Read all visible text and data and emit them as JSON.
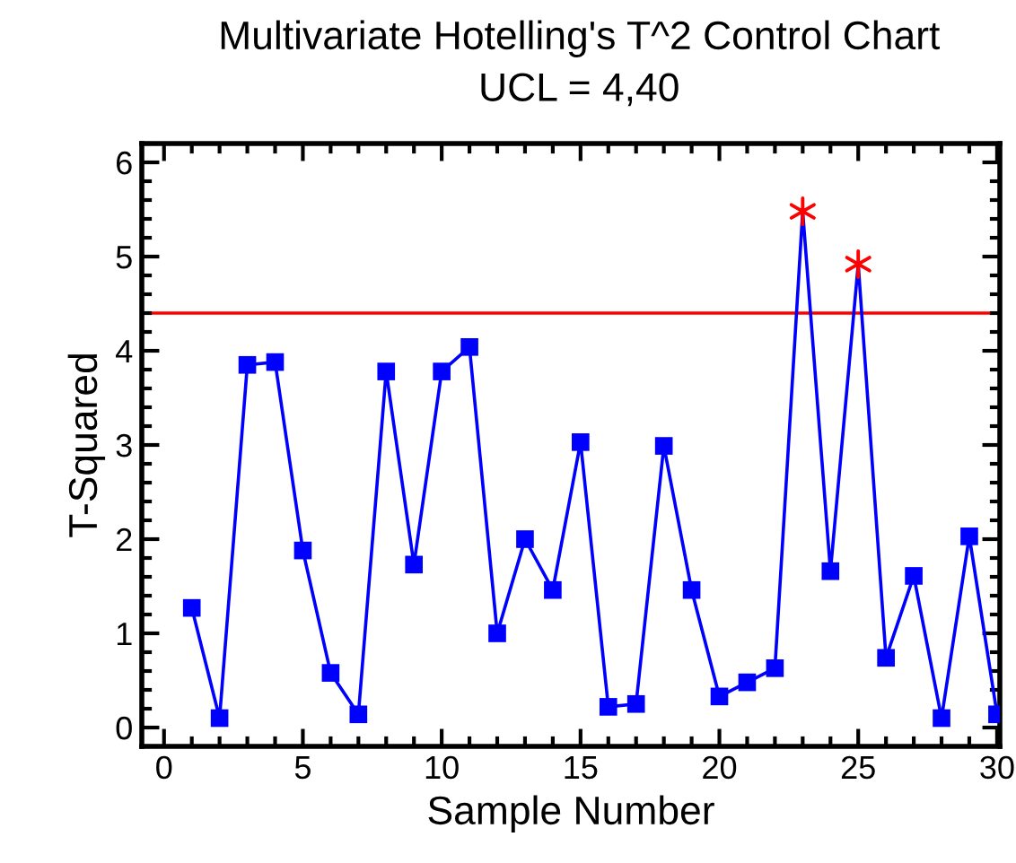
{
  "chart_data": {
    "type": "line",
    "title": "Multivariate Hotelling's T^2 Control Chart",
    "subtitle": "UCL = 4,40",
    "xlabel": "Sample Number",
    "ylabel": "T-Squared",
    "x": [
      1,
      2,
      3,
      4,
      5,
      6,
      7,
      8,
      9,
      10,
      11,
      12,
      13,
      14,
      15,
      16,
      17,
      18,
      19,
      20,
      21,
      22,
      23,
      24,
      25,
      26,
      27,
      28,
      29,
      30
    ],
    "series": [
      {
        "color": "#0000ff",
        "marker": "none",
        "values": [
          1.27,
          0.1,
          3.85,
          3.88,
          1.88,
          0.58,
          0.14,
          3.78,
          1.73,
          3.78,
          4.04,
          1.0,
          2.0,
          1.46,
          3.03,
          0.22,
          0.25,
          2.99,
          1.46,
          0.33,
          0.48,
          0.63,
          5.48,
          1.66,
          4.92,
          0.74,
          1.61,
          0.1,
          2.03,
          0.14
        ]
      },
      {
        "type": "scatter",
        "color": "#0000ff",
        "marker": "square",
        "values": [
          1.27,
          0.1,
          3.85,
          3.88,
          1.88,
          0.58,
          0.14,
          3.78,
          1.73,
          3.78,
          4.04,
          1.0,
          2.0,
          1.46,
          3.03,
          0.22,
          0.25,
          2.99,
          1.46,
          0.33,
          0.48,
          0.63,
          null,
          1.66,
          null,
          0.74,
          1.61,
          0.1,
          2.03,
          0.14
        ]
      },
      {
        "type": "scatter",
        "color": "#ff0000",
        "marker": "cross",
        "values": [
          null,
          null,
          null,
          null,
          null,
          null,
          null,
          null,
          null,
          null,
          null,
          null,
          null,
          null,
          null,
          null,
          null,
          null,
          null,
          null,
          null,
          null,
          5.48,
          null,
          4.92,
          null,
          null,
          null,
          null,
          null
        ]
      }
    ],
    "ref_lines": [
      {
        "axis": "y",
        "value": 4.4,
        "color": "#ff0000"
      }
    ],
    "xlim": [
      -0.8,
      30.1
    ],
    "xticks": [
      0,
      5,
      10,
      15,
      20,
      25,
      30
    ],
    "ylim": [
      -0.2,
      6.2
    ],
    "yticks": [
      0,
      1,
      2,
      3,
      4,
      5,
      6
    ],
    "grid": false,
    "legend": false
  }
}
